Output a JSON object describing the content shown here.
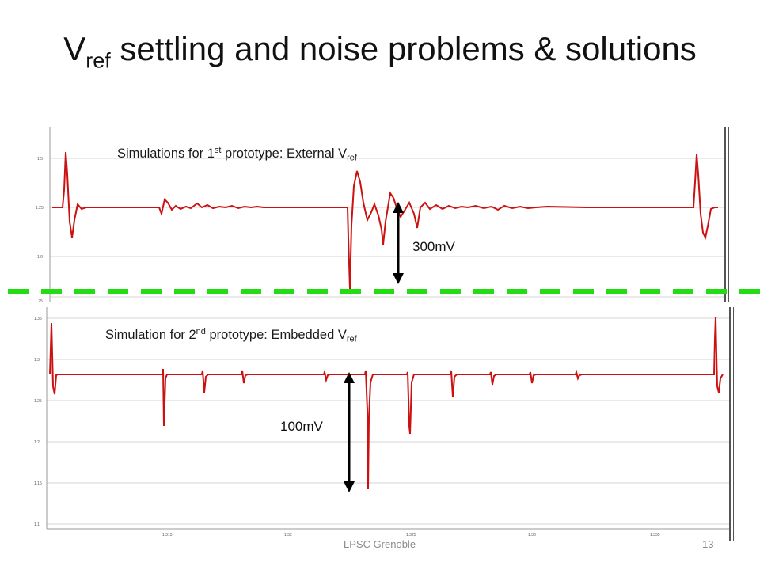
{
  "slide": {
    "title_main": "V",
    "title_sub": "ref",
    "title_rest": " settling and noise problems & solutions",
    "footer_center": "LPSC Grenoble",
    "page_number": "13"
  },
  "annotations": {
    "top_label_pre": "Simulations for 1",
    "top_label_sup": "st",
    "top_label_mid": " prototype: External V",
    "top_label_sub": "ref",
    "bottom_label_pre": "Simulation for 2",
    "bottom_label_sup": "nd",
    "bottom_label_mid": " prototype: Embedded V",
    "bottom_label_sub": "ref",
    "top_amplitude": "300mV",
    "bottom_amplitude": "100mV"
  },
  "colors": {
    "trace": "#cc1111",
    "separator": "#22dd11",
    "arrow": "#000000",
    "grid": "#d4d4d4"
  }
}
